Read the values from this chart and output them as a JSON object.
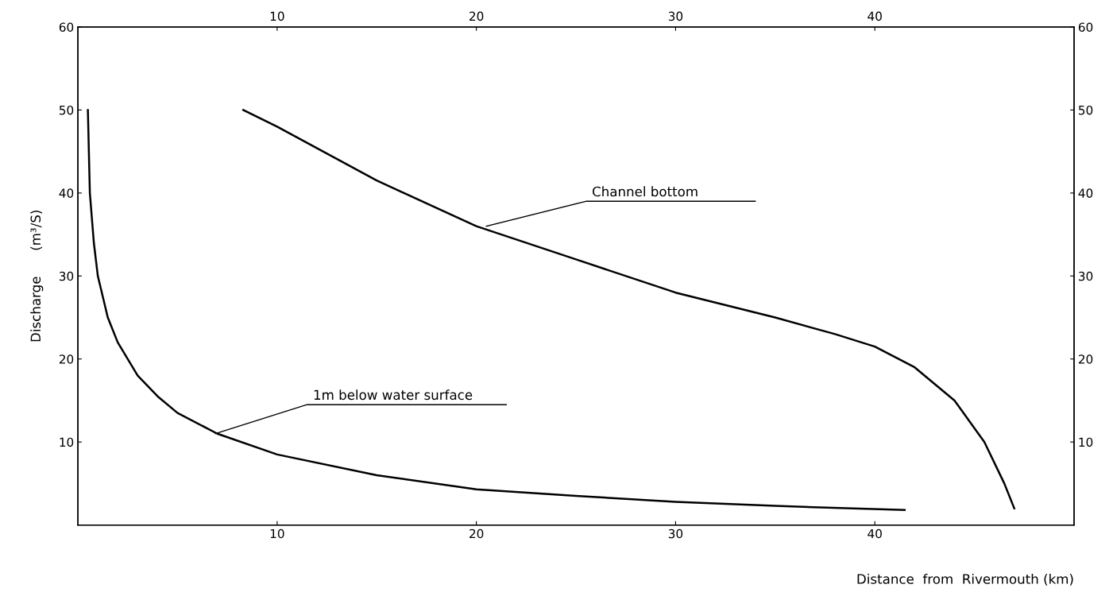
{
  "chart_data": {
    "type": "line",
    "xlabel": "Distance  from  Rivermouth (km)",
    "ylabel": "Discharge      (m³/S)",
    "xlim": [
      0,
      50
    ],
    "xticks": [
      10,
      20,
      30,
      40
    ],
    "x2lim": [
      0,
      50
    ],
    "x2ticks": [
      10,
      20,
      30,
      40
    ],
    "ylim": [
      0,
      60
    ],
    "yticks": [
      10,
      20,
      30,
      40,
      50,
      60
    ],
    "y2lim": [
      0,
      60
    ],
    "y2ticks": [
      10,
      20,
      30,
      40,
      50,
      60
    ],
    "grid": false,
    "legend": false,
    "marker": "none",
    "line_style": "solid",
    "series": [
      {
        "color": "#000000",
        "x": [
          0.5,
          0.6,
          0.8,
          1,
          1.5,
          2,
          3,
          4,
          5,
          7,
          10,
          15,
          20,
          25,
          30,
          35,
          41.5
        ],
        "values": [
          50,
          40,
          34,
          30,
          25,
          22,
          18,
          15.5,
          13.5,
          11,
          8.5,
          6,
          4.3,
          3.5,
          2.8,
          2.3,
          1.8
        ]
      },
      {
        "color": "#000000",
        "x": [
          8.3,
          10,
          15,
          20,
          25,
          30,
          35,
          38,
          40,
          42,
          44,
          45.5,
          46.5,
          47
        ],
        "values": [
          50,
          48,
          41.5,
          36,
          32,
          28,
          25,
          23,
          21.5,
          19,
          15,
          10,
          5,
          2
        ]
      }
    ],
    "annotations": [
      {
        "text": "1m below water surface",
        "x": 6.9,
        "y": 11
      },
      {
        "text": "Channel bottom",
        "x": 20.5,
        "y": 36
      }
    ]
  }
}
